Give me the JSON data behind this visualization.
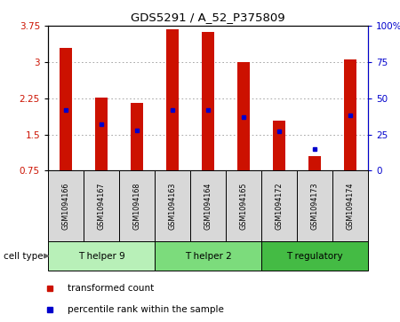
{
  "title": "GDS5291 / A_52_P375809",
  "samples": [
    "GSM1094166",
    "GSM1094167",
    "GSM1094168",
    "GSM1094163",
    "GSM1094164",
    "GSM1094165",
    "GSM1094172",
    "GSM1094173",
    "GSM1094174"
  ],
  "red_values": [
    3.3,
    2.27,
    2.15,
    3.68,
    3.63,
    3.0,
    1.78,
    1.05,
    3.05
  ],
  "blue_percentiles": [
    42,
    32,
    28,
    42,
    42,
    37,
    27,
    15,
    38
  ],
  "ylim_left": [
    0.75,
    3.75
  ],
  "ylim_right": [
    0,
    100
  ],
  "yticks_left": [
    0.75,
    1.5,
    2.25,
    3.0,
    3.75
  ],
  "yticks_right": [
    0,
    25,
    50,
    75,
    100
  ],
  "ytick_labels_left": [
    "0.75",
    "1.5",
    "2.25",
    "3",
    "3.75"
  ],
  "ytick_labels_right": [
    "0",
    "25",
    "50",
    "75",
    "100%"
  ],
  "cell_groups": [
    {
      "label": "T helper 9",
      "samples": [
        0,
        1,
        2
      ],
      "color": "#b8f0b8"
    },
    {
      "label": "T helper 2",
      "samples": [
        3,
        4,
        5
      ],
      "color": "#7cdc7c"
    },
    {
      "label": "T regulatory",
      "samples": [
        6,
        7,
        8
      ],
      "color": "#44bb44"
    }
  ],
  "bar_color": "#cc1100",
  "dot_color": "#0000cc",
  "baseline": 0.75,
  "grid_color": "#999999",
  "bg_color": "#d8d8d8",
  "label_color_red": "#cc1100",
  "label_color_blue": "#0000cc",
  "legend_red": "transformed count",
  "legend_blue": "percentile rank within the sample",
  "cell_type_label": "cell type"
}
